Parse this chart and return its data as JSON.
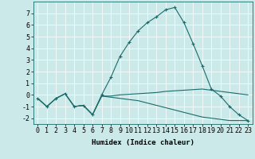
{
  "xlabel": "Humidex (Indice chaleur)",
  "bg_color": "#cce9e9",
  "grid_color": "#ffffff",
  "line_color": "#1a6b6b",
  "series": [
    {
      "x": [
        0,
        1,
        2,
        3,
        4,
        5,
        6,
        7,
        8,
        9,
        10,
        11,
        12,
        13,
        14,
        15,
        16,
        17,
        18,
        19,
        20,
        21,
        22,
        23
      ],
      "y": [
        -0.3,
        -1.0,
        -0.3,
        0.1,
        -1.0,
        -0.9,
        -1.7,
        0.0,
        1.5,
        3.3,
        4.5,
        5.5,
        6.2,
        6.7,
        7.3,
        7.5,
        6.2,
        4.4,
        2.5,
        0.5,
        -0.1,
        -1.0,
        -1.7,
        -2.2
      ],
      "has_marker": true
    },
    {
      "x": [
        0,
        1,
        2,
        3,
        4,
        5,
        6,
        7,
        8,
        9,
        10,
        11,
        12,
        13,
        14,
        15,
        16,
        17,
        18,
        19,
        20,
        21,
        22,
        23
      ],
      "y": [
        -0.3,
        -1.0,
        -0.3,
        0.1,
        -1.0,
        -0.9,
        -1.7,
        -0.1,
        -0.1,
        0.0,
        0.05,
        0.1,
        0.15,
        0.2,
        0.3,
        0.35,
        0.4,
        0.45,
        0.5,
        0.4,
        0.3,
        0.2,
        0.1,
        0.0
      ],
      "has_marker": false
    },
    {
      "x": [
        0,
        1,
        2,
        3,
        4,
        5,
        6,
        7,
        8,
        9,
        10,
        11,
        12,
        13,
        14,
        15,
        16,
        17,
        18,
        19,
        20,
        21,
        22,
        23
      ],
      "y": [
        -0.3,
        -1.0,
        -0.3,
        0.1,
        -1.0,
        -0.9,
        -1.7,
        -0.1,
        -0.2,
        -0.3,
        -0.4,
        -0.5,
        -0.7,
        -0.9,
        -1.1,
        -1.3,
        -1.5,
        -1.7,
        -1.9,
        -2.0,
        -2.1,
        -2.2,
        -2.2,
        -2.2
      ],
      "has_marker": false
    }
  ],
  "xlim": [
    0,
    23
  ],
  "ylim": [
    -2.5,
    8.0
  ],
  "yticks": [
    -2,
    -1,
    0,
    1,
    2,
    3,
    4,
    5,
    6,
    7
  ],
  "xticks": [
    0,
    1,
    2,
    3,
    4,
    5,
    6,
    7,
    8,
    9,
    10,
    11,
    12,
    13,
    14,
    15,
    16,
    17,
    18,
    19,
    20,
    21,
    22,
    23
  ],
  "label_fontsize": 6.5,
  "tick_fontsize": 6.0
}
